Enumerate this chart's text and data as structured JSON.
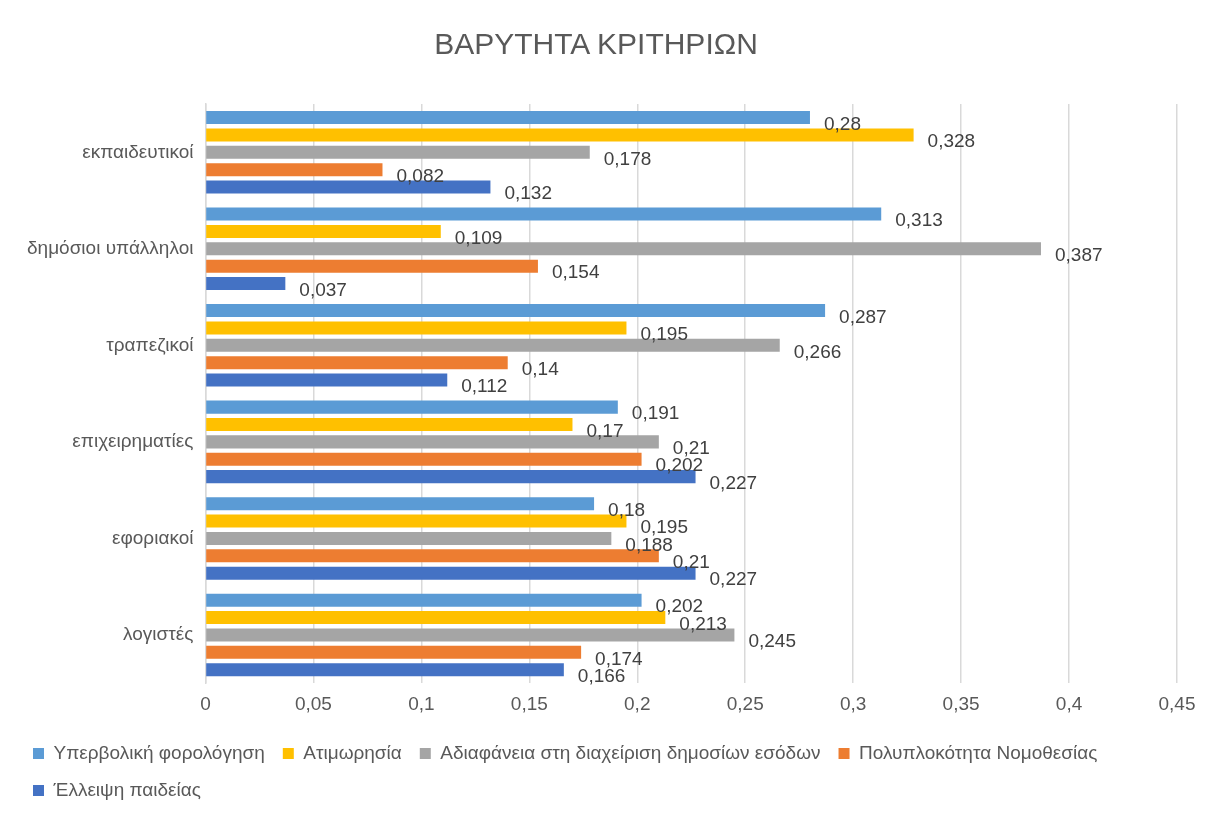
{
  "chart_data": {
    "type": "bar",
    "orientation": "horizontal",
    "title": "ΒΑΡΥΤΗΤΑ ΚΡΙΤΗΡΙΩΝ",
    "categories": [
      "εκπαιδευτικοί",
      "δημόσιοι υπάλληλοι",
      "τραπεζικοί",
      "επιχειρηματίες",
      "εφοριακοί",
      "λογιστές"
    ],
    "series": [
      {
        "name": "Υπερβολική φορολόγηση",
        "color": "#5b9bd5",
        "values": [
          0.28,
          0.313,
          0.287,
          0.191,
          0.18,
          0.202
        ],
        "value_labels": [
          "0,28",
          "0,313",
          "0,287",
          "0,191",
          "0,18",
          "0,202"
        ]
      },
      {
        "name": "Ατιμωρησία",
        "color": "#ffc000",
        "values": [
          0.328,
          0.109,
          0.195,
          0.17,
          0.195,
          0.213
        ],
        "value_labels": [
          "0,328",
          "0,109",
          "0,195",
          "0,17",
          "0,195",
          "0,213"
        ]
      },
      {
        "name": "Αδιαφάνεια στη διαχείριση δημοσίων εσόδων",
        "color": "#a5a5a5",
        "values": [
          0.178,
          0.387,
          0.266,
          0.21,
          0.188,
          0.245
        ],
        "value_labels": [
          "0,178",
          "0,387",
          "0,266",
          "0,21",
          "0,188",
          "0,245"
        ]
      },
      {
        "name": "Πολυπλοκότητα Νομοθεσίας",
        "color": "#ed7d31",
        "values": [
          0.082,
          0.154,
          0.14,
          0.202,
          0.21,
          0.174
        ],
        "value_labels": [
          "0,082",
          "0,154",
          "0,14",
          "0,202",
          "0,21",
          "0,174"
        ]
      },
      {
        "name": "Έλλειψη παιδείας",
        "color": "#4472c4",
        "values": [
          0.132,
          0.037,
          0.112,
          0.227,
          0.227,
          0.166
        ],
        "value_labels": [
          "0,132",
          "0,037",
          "0,112",
          "0,227",
          "0,227",
          "0,166"
        ]
      }
    ],
    "xlim": [
      0,
      0.45
    ],
    "xticks": [
      0,
      {
        "value": 0.05,
        "label": "0,05"
      },
      {
        "value": 0.1,
        "label": "0,1"
      },
      {
        "value": 0.15,
        "label": "0,15"
      },
      {
        "value": 0.2,
        "label": "0,2"
      },
      {
        "value": 0.25,
        "label": "0,25"
      },
      {
        "value": 0.3,
        "label": "0,3"
      },
      {
        "value": 0.35,
        "label": "0,35"
      },
      {
        "value": 0.4,
        "label": "0,4"
      },
      {
        "value": 0.45,
        "label": "0,45"
      }
    ],
    "grid": "x",
    "legend": "bottom"
  }
}
